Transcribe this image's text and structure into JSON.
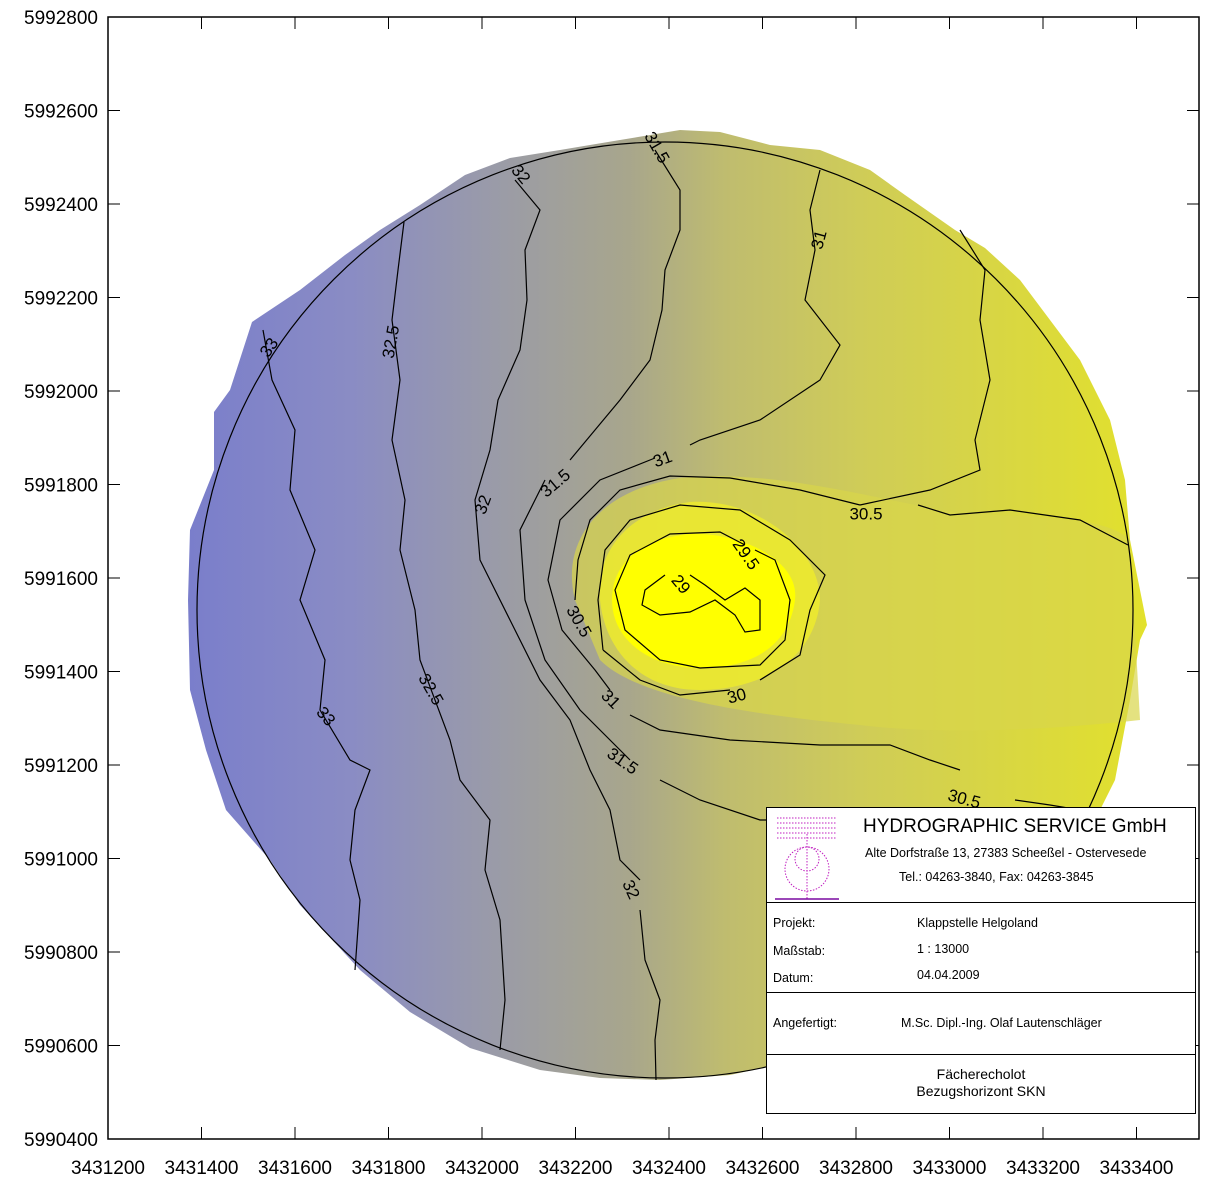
{
  "map": {
    "x_ticks": [
      "3431200",
      "3431400",
      "3431600",
      "3431800",
      "3432000",
      "3432200",
      "3432400",
      "3432600",
      "3432800",
      "3433000",
      "3433200",
      "3433400"
    ],
    "y_ticks": [
      "5992800",
      "5992600",
      "5992400",
      "5992200",
      "5992000",
      "5991800",
      "5991600",
      "5991400",
      "5991200",
      "5991000",
      "5990800",
      "5990600",
      "5990400"
    ],
    "contour_labels": [
      "31.5",
      "32",
      "31",
      "32.5",
      "33",
      "31",
      "31.5",
      "32",
      "30.5",
      "29.5",
      "29",
      "30.5",
      "30",
      "31",
      "32.5",
      "33",
      "31.5",
      "30.5",
      "32"
    ],
    "depth_levels": [
      29,
      29.5,
      30,
      30.5,
      31,
      31.5,
      32,
      32.5,
      33
    ],
    "colors": {
      "shallow": "#ffff00",
      "deep": "#7a7ecb",
      "frame": "#000000"
    }
  },
  "title_block": {
    "company": "HYDROGRAPHIC SERVICE GmbH",
    "address": "Alte Dorfstraße 13, 27383 Scheeßel - Ostervesede",
    "phone": "Tel.: 04263-3840, Fax: 04263-3845",
    "project_label": "Projekt:",
    "project_value": "Klappstelle Helgoland",
    "scale_label": "Maßstab:",
    "scale_value": "1 : 13000",
    "date_label": "Datum:",
    "date_value": "04.04.2009",
    "author_label": "Angefertigt:",
    "author_value": "M.Sc. Dipl.-Ing. Olaf Lautenschläger",
    "method": "Fächerecholot",
    "datum_ref": "Bezugshorizont SKN"
  }
}
